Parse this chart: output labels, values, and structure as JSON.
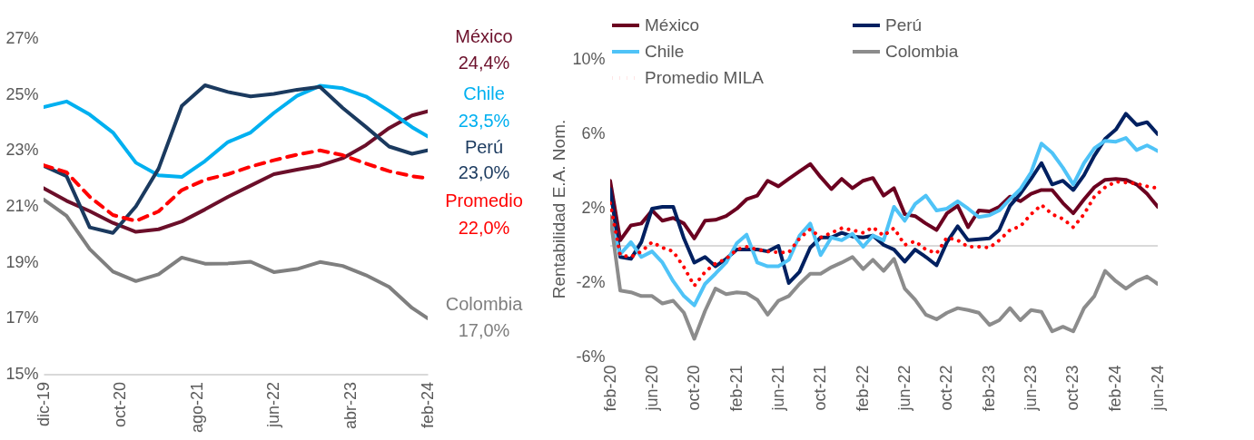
{
  "chart_data": [
    {
      "type": "line",
      "x": [
        "2019-12",
        "2020-03",
        "2020-06",
        "2020-09",
        "2020-12",
        "2021-03",
        "2021-06",
        "2021-09",
        "2021-12",
        "2022-03",
        "2022-06",
        "2022-09",
        "2022-12",
        "2023-03",
        "2023-06",
        "2023-09",
        "2023-12",
        "2024-02"
      ],
      "series": [
        {
          "name": "México",
          "color": "#6b0f2a",
          "values": [
            21.65,
            21.2,
            20.83,
            20.41,
            20.09,
            20.18,
            20.46,
            20.89,
            21.34,
            21.74,
            22.15,
            22.31,
            22.46,
            22.72,
            23.19,
            23.8,
            24.25,
            24.4
          ]
        },
        {
          "name": "Chile",
          "color": "#00b0f0",
          "values": [
            24.55,
            24.75,
            24.28,
            23.64,
            22.56,
            22.11,
            22.05,
            22.62,
            23.3,
            23.64,
            24.34,
            24.95,
            25.31,
            25.22,
            24.93,
            24.41,
            23.83,
            23.5
          ]
        },
        {
          "name": "Perú",
          "color": "#1b3a5f",
          "values": [
            22.45,
            22.08,
            20.25,
            20.05,
            21.0,
            22.35,
            24.59,
            25.33,
            25.09,
            24.93,
            25.02,
            25.17,
            25.27,
            24.52,
            23.84,
            23.14,
            22.88,
            23.0
          ]
        },
        {
          "name": "Promedio",
          "color": "#ff0000",
          "line_style": "dashed",
          "values": [
            22.47,
            22.22,
            21.34,
            20.69,
            20.48,
            20.82,
            21.58,
            21.95,
            22.15,
            22.42,
            22.65,
            22.85,
            23.0,
            22.83,
            22.53,
            22.26,
            22.08,
            22.0
          ]
        },
        {
          "name": "Colombia",
          "color": "#7f7f7f",
          "values": [
            21.25,
            20.66,
            19.47,
            18.67,
            18.33,
            18.57,
            19.17,
            18.95,
            18.96,
            19.02,
            18.65,
            18.76,
            19.01,
            18.87,
            18.54,
            18.12,
            17.37,
            17.0
          ]
        }
      ],
      "annotations": [
        {
          "text": "24,4%",
          "x": "2024-02",
          "y": 24.4
        },
        {
          "text": "23,5%",
          "x": "2024-02",
          "y": 23.5
        },
        {
          "text": "23,0%",
          "x": "2024-02",
          "y": 23.0
        },
        {
          "text": "22,0%",
          "x": "2024-02",
          "y": 22.0
        },
        {
          "text": "17,0%",
          "x": "2024-02",
          "y": 17.0
        }
      ],
      "xlim": [
        "2019-12",
        "2024-02"
      ],
      "xticks": [
        {
          "value": "2019-12",
          "label": "dic-19"
        },
        {
          "value": "2020-10",
          "label": "oct-20"
        },
        {
          "value": "2021-08",
          "label": "ago-21"
        },
        {
          "value": "2022-06",
          "label": "jun-22"
        },
        {
          "value": "2023-04",
          "label": "abr-23"
        },
        {
          "value": "2024-02",
          "label": "feb-24"
        }
      ],
      "ylim": [
        15,
        27
      ],
      "yticks": [
        {
          "value": 15,
          "label": "15%"
        },
        {
          "value": 17,
          "label": "17%"
        },
        {
          "value": 19,
          "label": "19%"
        },
        {
          "value": 21,
          "label": "21%"
        },
        {
          "value": 23,
          "label": "23%"
        },
        {
          "value": 25,
          "label": "25%"
        },
        {
          "value": 27,
          "label": "27%"
        }
      ],
      "legend": false
    },
    {
      "type": "line",
      "x": [
        "2020-02",
        "2020-03",
        "2020-04",
        "2020-05",
        "2020-06",
        "2020-07",
        "2020-08",
        "2020-09",
        "2020-10",
        "2020-11",
        "2020-12",
        "2021-01",
        "2021-02",
        "2021-03",
        "2021-04",
        "2021-05",
        "2021-06",
        "2021-07",
        "2021-08",
        "2021-09",
        "2021-10",
        "2021-11",
        "2021-12",
        "2022-01",
        "2022-02",
        "2022-03",
        "2022-04",
        "2022-05",
        "2022-06",
        "2022-07",
        "2022-08",
        "2022-09",
        "2022-10",
        "2022-11",
        "2022-12",
        "2023-01",
        "2023-02",
        "2023-03",
        "2023-04",
        "2023-05",
        "2023-06",
        "2023-07",
        "2023-08",
        "2023-09",
        "2023-10",
        "2023-11",
        "2023-12",
        "2024-01",
        "2024-02",
        "2024-03",
        "2024-04",
        "2024-05",
        "2024-06"
      ],
      "series": [
        {
          "name": "México",
          "color": "#6b0020",
          "values": [
            3.5,
            0.3,
            1.1,
            1.2,
            1.9,
            1.35,
            1.5,
            1.2,
            0.4,
            1.35,
            1.4,
            1.6,
            2.0,
            2.5,
            2.7,
            3.5,
            3.2,
            3.6,
            4.0,
            4.4,
            3.7,
            3.05,
            3.6,
            3.1,
            3.5,
            3.65,
            2.7,
            3.1,
            1.7,
            1.6,
            1.2,
            0.85,
            1.75,
            2.15,
            1.0,
            1.9,
            1.85,
            2.1,
            2.65,
            2.4,
            2.8,
            3.0,
            3.0,
            2.3,
            1.75,
            2.5,
            3.15,
            3.55,
            3.6,
            3.55,
            3.3,
            2.8,
            2.1
          ]
        },
        {
          "name": "Perú",
          "color": "#002060",
          "values": [
            3.05,
            -0.6,
            -0.7,
            0.2,
            2.0,
            2.1,
            2.1,
            0.4,
            -0.9,
            -0.6,
            -1.1,
            -0.7,
            -0.2,
            -0.2,
            -0.2,
            -0.3,
            0.0,
            -2.0,
            -1.4,
            -0.1,
            0.45,
            0.45,
            0.7,
            0.5,
            0.45,
            0.55,
            0.05,
            -0.2,
            -0.85,
            -0.2,
            -0.6,
            -1.05,
            0.2,
            1.05,
            0.3,
            0.35,
            0.4,
            0.85,
            2.15,
            2.8,
            3.6,
            4.45,
            3.3,
            3.5,
            3.0,
            3.8,
            4.85,
            5.75,
            6.25,
            7.1,
            6.5,
            6.65,
            6.0
          ]
        },
        {
          "name": "Chile",
          "color": "#4fc3f7",
          "values": [
            1.35,
            -0.45,
            0.2,
            -0.6,
            -0.3,
            -0.9,
            -1.9,
            -2.7,
            -3.2,
            -2.05,
            -1.5,
            -0.9,
            0.15,
            0.6,
            -0.9,
            -1.1,
            -1.1,
            -0.75,
            0.55,
            1.2,
            -0.5,
            0.45,
            0.3,
            0.65,
            -0.05,
            0.55,
            0.3,
            2.1,
            1.35,
            2.25,
            2.7,
            1.9,
            2.0,
            2.4,
            2.0,
            1.55,
            1.65,
            1.9,
            2.5,
            3.05,
            3.95,
            5.5,
            5.0,
            4.2,
            3.3,
            4.45,
            5.25,
            5.65,
            5.6,
            5.8,
            5.15,
            5.4,
            5.1
          ]
        },
        {
          "name": "Colombia",
          "color": "#8c8c8c",
          "values": [
            1.6,
            -2.4,
            -2.5,
            -2.7,
            -2.7,
            -3.1,
            -2.95,
            -3.6,
            -5.0,
            -3.5,
            -2.3,
            -2.6,
            -2.5,
            -2.55,
            -2.9,
            -3.7,
            -2.95,
            -2.7,
            -2.05,
            -1.5,
            -1.5,
            -1.15,
            -0.9,
            -0.6,
            -1.25,
            -0.75,
            -1.35,
            -0.7,
            -2.3,
            -2.9,
            -3.7,
            -3.95,
            -3.6,
            -3.35,
            -3.45,
            -3.6,
            -4.25,
            -4.0,
            -3.35,
            -4.0,
            -3.45,
            -3.55,
            -4.6,
            -4.35,
            -4.6,
            -3.35,
            -2.7,
            -1.35,
            -1.9,
            -2.3,
            -1.9,
            -1.65,
            -2.05
          ]
        },
        {
          "name": "Promedio MILA",
          "color": "#ff0000",
          "line_style": "dotted",
          "values": [
            2.3,
            -0.5,
            -0.6,
            -0.3,
            0.2,
            -0.1,
            -0.3,
            -1.15,
            -2.15,
            -1.4,
            -0.95,
            -0.7,
            -0.2,
            -0.05,
            -0.2,
            -0.3,
            -0.35,
            -0.35,
            0.4,
            0.9,
            0.45,
            0.7,
            0.95,
            0.85,
            0.7,
            1.0,
            0.55,
            0.95,
            0.05,
            0.25,
            -0.2,
            -0.4,
            0.45,
            0.3,
            -0.05,
            -0.05,
            -0.1,
            0.3,
            0.85,
            1.05,
            1.7,
            2.2,
            1.7,
            1.45,
            1.0,
            1.7,
            2.65,
            3.15,
            3.45,
            3.4,
            3.35,
            3.2,
            3.1
          ]
        }
      ],
      "ylabel": "Rentabilidad E.A. Nom.",
      "xlim": [
        "2020-02",
        "2024-06"
      ],
      "xticks": [
        {
          "value": "2020-02",
          "label": "feb-20"
        },
        {
          "value": "2020-06",
          "label": "jun-20"
        },
        {
          "value": "2020-10",
          "label": "oct-20"
        },
        {
          "value": "2021-02",
          "label": "feb-21"
        },
        {
          "value": "2021-06",
          "label": "jun-21"
        },
        {
          "value": "2021-10",
          "label": "oct-21"
        },
        {
          "value": "2022-02",
          "label": "feb-22"
        },
        {
          "value": "2022-06",
          "label": "jun-22"
        },
        {
          "value": "2022-10",
          "label": "oct-22"
        },
        {
          "value": "2023-02",
          "label": "feb-23"
        },
        {
          "value": "2023-06",
          "label": "jun-23"
        },
        {
          "value": "2023-10",
          "label": "oct-23"
        },
        {
          "value": "2024-02",
          "label": "feb-24"
        },
        {
          "value": "2024-06",
          "label": "jun-24"
        }
      ],
      "ylim": [
        -6,
        10
      ],
      "yticks": [
        {
          "value": -6,
          "label": "-6%"
        },
        {
          "value": -2,
          "label": "-2%"
        },
        {
          "value": 2,
          "label": "2%"
        },
        {
          "value": 6,
          "label": "6%"
        },
        {
          "value": 10,
          "label": "10%"
        }
      ],
      "ref_lines": [
        {
          "axis": "y",
          "value": 0,
          "color": "#d9d9d9"
        }
      ],
      "legend": "top"
    }
  ]
}
